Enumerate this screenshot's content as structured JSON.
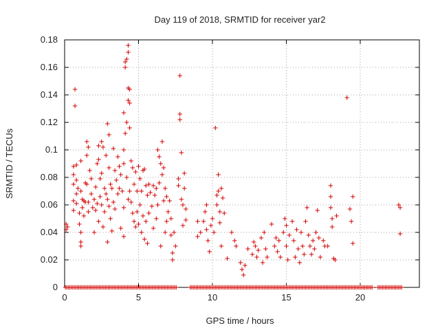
{
  "chart_data": {
    "type": "scatter",
    "title": "Day 119 of 2018, SRMTID for receiver yar2",
    "xlabel": "GPS time / hours",
    "ylabel": "SRMTID / TECUs",
    "xlim": [
      0,
      24
    ],
    "ylim": [
      0,
      0.18
    ],
    "grid": true,
    "marker": "+",
    "color": "#d40000",
    "x_ticks": [
      0,
      5,
      10,
      15,
      20
    ],
    "y_ticks": [
      0,
      0.02,
      0.04,
      0.06,
      0.08,
      0.1,
      0.12,
      0.14,
      0.16,
      0.18
    ],
    "x_tick_labels": [
      "0",
      "5",
      "10",
      "15",
      "20"
    ],
    "y_tick_labels": [
      "0",
      "0.02",
      "0.04",
      "0.06",
      "0.08",
      "0.1",
      "0.12",
      "0.14",
      "0.16",
      "0.18"
    ],
    "series": [
      {
        "name": "SRMTID",
        "points": [
          [
            0.1,
            0.046
          ],
          [
            0.1,
            0.042
          ],
          [
            0.2,
            0.044
          ],
          [
            0.6,
            0.088
          ],
          [
            0.6,
            0.082
          ],
          [
            0.6,
            0.075
          ],
          [
            0.6,
            0.063
          ],
          [
            0.6,
            0.056
          ],
          [
            0.7,
            0.144
          ],
          [
            0.7,
            0.132
          ],
          [
            0.8,
            0.089
          ],
          [
            0.8,
            0.078
          ],
          [
            0.8,
            0.068
          ],
          [
            0.8,
            0.061
          ],
          [
            0.9,
            0.072
          ],
          [
            1.0,
            0.054
          ],
          [
            1.0,
            0.046
          ],
          [
            1.1,
            0.092
          ],
          [
            1.1,
            0.07
          ],
          [
            1.1,
            0.04
          ],
          [
            1.1,
            0.033
          ],
          [
            1.1,
            0.03
          ],
          [
            1.2,
            0.064
          ],
          [
            1.2,
            0.058
          ],
          [
            1.3,
            0.063
          ],
          [
            1.3,
            0.052
          ],
          [
            1.4,
            0.076
          ],
          [
            1.4,
            0.062
          ],
          [
            1.5,
            0.106
          ],
          [
            1.5,
            0.096
          ],
          [
            1.5,
            0.075
          ],
          [
            1.6,
            0.102
          ],
          [
            1.6,
            0.062
          ],
          [
            1.6,
            0.055
          ],
          [
            1.7,
            0.085
          ],
          [
            1.8,
            0.079
          ],
          [
            1.8,
            0.068
          ],
          [
            1.9,
            0.058
          ],
          [
            2.0,
            0.064
          ],
          [
            2.0,
            0.04
          ],
          [
            2.1,
            0.073
          ],
          [
            2.1,
            0.056
          ],
          [
            2.2,
            0.09
          ],
          [
            2.2,
            0.061
          ],
          [
            2.3,
            0.103
          ],
          [
            2.3,
            0.093
          ],
          [
            2.3,
            0.048
          ],
          [
            2.4,
            0.079
          ],
          [
            2.4,
            0.066
          ],
          [
            2.5,
            0.106
          ],
          [
            2.5,
            0.083
          ],
          [
            2.5,
            0.06
          ],
          [
            2.6,
            0.102
          ],
          [
            2.6,
            0.044
          ],
          [
            2.7,
            0.072
          ],
          [
            2.7,
            0.055
          ],
          [
            2.8,
            0.096
          ],
          [
            2.8,
            0.068
          ],
          [
            2.9,
            0.119
          ],
          [
            2.9,
            0.064
          ],
          [
            2.9,
            0.033
          ],
          [
            3.0,
            0.111
          ],
          [
            3.0,
            0.087
          ],
          [
            3.0,
            0.059
          ],
          [
            3.1,
            0.075
          ],
          [
            3.1,
            0.05
          ],
          [
            3.2,
            0.072
          ],
          [
            3.2,
            0.041
          ],
          [
            3.3,
            0.101
          ],
          [
            3.3,
            0.062
          ],
          [
            3.4,
            0.085
          ],
          [
            3.4,
            0.057
          ],
          [
            3.5,
            0.078
          ],
          [
            3.6,
            0.095
          ],
          [
            3.6,
            0.068
          ],
          [
            3.7,
            0.088
          ],
          [
            3.7,
            0.072
          ],
          [
            3.8,
            0.082
          ],
          [
            3.8,
            0.043
          ],
          [
            3.9,
            0.07
          ],
          [
            4.0,
            0.1
          ],
          [
            4.0,
            0.127
          ],
          [
            4.0,
            0.09
          ],
          [
            4.0,
            0.058
          ],
          [
            4.0,
            0.037
          ],
          [
            4.1,
            0.16
          ],
          [
            4.1,
            0.164
          ],
          [
            4.1,
            0.112
          ],
          [
            4.2,
            0.166
          ],
          [
            4.2,
            0.12
          ],
          [
            4.2,
            0.08
          ],
          [
            4.3,
            0.176
          ],
          [
            4.3,
            0.171
          ],
          [
            4.3,
            0.145
          ],
          [
            4.3,
            0.136
          ],
          [
            4.3,
            0.064
          ],
          [
            4.4,
            0.144
          ],
          [
            4.4,
            0.134
          ],
          [
            4.4,
            0.116
          ],
          [
            4.4,
            0.07
          ],
          [
            4.5,
            0.092
          ],
          [
            4.5,
            0.062
          ],
          [
            4.6,
            0.087
          ],
          [
            4.6,
            0.054
          ],
          [
            4.7,
            0.075
          ],
          [
            4.7,
            0.048
          ],
          [
            4.8,
            0.084
          ],
          [
            4.8,
            0.044
          ],
          [
            4.9,
            0.07
          ],
          [
            4.9,
            0.055
          ],
          [
            5.0,
            0.088
          ],
          [
            5.0,
            0.046
          ],
          [
            5.1,
            0.079
          ],
          [
            5.1,
            0.06
          ],
          [
            5.2,
            0.07
          ],
          [
            5.2,
            0.04
          ],
          [
            5.3,
            0.085
          ],
          [
            5.3,
            0.052
          ],
          [
            5.4,
            0.086
          ],
          [
            5.4,
            0.035
          ],
          [
            5.5,
            0.074
          ],
          [
            5.5,
            0.048
          ],
          [
            5.6,
            0.067
          ],
          [
            5.6,
            0.032
          ],
          [
            5.7,
            0.075
          ],
          [
            5.7,
            0.054
          ],
          [
            5.8,
            0.069
          ],
          [
            5.9,
            0.059
          ],
          [
            6.0,
            0.074
          ],
          [
            6.0,
            0.043
          ],
          [
            6.1,
            0.067
          ],
          [
            6.2,
            0.072
          ],
          [
            6.2,
            0.05
          ],
          [
            6.3,
            0.1
          ],
          [
            6.3,
            0.06
          ],
          [
            6.4,
            0.095
          ],
          [
            6.4,
            0.076
          ],
          [
            6.5,
            0.09
          ],
          [
            6.5,
            0.03
          ],
          [
            6.6,
            0.106
          ],
          [
            6.6,
            0.082
          ],
          [
            6.7,
            0.087
          ],
          [
            6.7,
            0.063
          ],
          [
            6.8,
            0.072
          ],
          [
            6.8,
            0.04
          ],
          [
            6.9,
            0.066
          ],
          [
            6.9,
            0.048
          ],
          [
            7.0,
            0.055
          ],
          [
            7.1,
            0.063
          ],
          [
            7.2,
            0.05
          ],
          [
            7.2,
            0.038
          ],
          [
            7.3,
            0.025
          ],
          [
            7.3,
            0.02
          ],
          [
            7.4,
            0.04
          ],
          [
            7.5,
            0.03
          ],
          [
            7.7,
            0.079
          ],
          [
            7.7,
            0.074
          ],
          [
            7.8,
            0.154
          ],
          [
            7.8,
            0.126
          ],
          [
            7.8,
            0.122
          ],
          [
            7.9,
            0.098
          ],
          [
            7.9,
            0.064
          ],
          [
            8.0,
            0.06
          ],
          [
            8.0,
            0.045
          ],
          [
            8.1,
            0.083
          ],
          [
            8.1,
            0.072
          ],
          [
            8.2,
            0.057
          ],
          [
            8.2,
            0.049
          ],
          [
            9.0,
            0.048
          ],
          [
            9.0,
            0.037
          ],
          [
            9.2,
            0.04
          ],
          [
            9.4,
            0.048
          ],
          [
            9.5,
            0.055
          ],
          [
            9.6,
            0.06
          ],
          [
            9.6,
            0.042
          ],
          [
            9.7,
            0.034
          ],
          [
            9.8,
            0.026
          ],
          [
            9.9,
            0.045
          ],
          [
            10.0,
            0.05
          ],
          [
            10.1,
            0.04
          ],
          [
            10.2,
            0.116
          ],
          [
            10.3,
            0.067
          ],
          [
            10.3,
            0.06
          ],
          [
            10.4,
            0.082
          ],
          [
            10.4,
            0.07
          ],
          [
            10.5,
            0.055
          ],
          [
            10.5,
            0.047
          ],
          [
            10.6,
            0.072
          ],
          [
            10.6,
            0.03
          ],
          [
            10.7,
            0.065
          ],
          [
            10.8,
            0.054
          ],
          [
            11.0,
            0.021
          ],
          [
            11.3,
            0.04
          ],
          [
            11.5,
            0.034
          ],
          [
            11.6,
            0.03
          ],
          [
            11.9,
            0.018
          ],
          [
            12.0,
            0.013
          ],
          [
            12.1,
            0.009
          ],
          [
            12.2,
            0.016
          ],
          [
            12.4,
            0.028
          ],
          [
            12.7,
            0.024
          ],
          [
            12.8,
            0.033
          ],
          [
            12.9,
            0.03
          ],
          [
            13.0,
            0.022
          ],
          [
            13.1,
            0.027
          ],
          [
            13.3,
            0.036
          ],
          [
            13.4,
            0.018
          ],
          [
            13.5,
            0.04
          ],
          [
            13.6,
            0.028
          ],
          [
            13.7,
            0.022
          ],
          [
            14.0,
            0.046
          ],
          [
            14.2,
            0.03
          ],
          [
            14.3,
            0.036
          ],
          [
            14.4,
            0.026
          ],
          [
            14.5,
            0.034
          ],
          [
            14.6,
            0.022
          ],
          [
            14.8,
            0.04
          ],
          [
            14.9,
            0.05
          ],
          [
            15.0,
            0.045
          ],
          [
            15.0,
            0.03
          ],
          [
            15.1,
            0.02
          ],
          [
            15.2,
            0.038
          ],
          [
            15.4,
            0.048
          ],
          [
            15.5,
            0.034
          ],
          [
            15.6,
            0.022
          ],
          [
            15.7,
            0.042
          ],
          [
            15.8,
            0.028
          ],
          [
            15.9,
            0.018
          ],
          [
            16.0,
            0.04
          ],
          [
            16.1,
            0.03
          ],
          [
            16.2,
            0.024
          ],
          [
            16.3,
            0.048
          ],
          [
            16.4,
            0.058
          ],
          [
            16.5,
            0.038
          ],
          [
            16.6,
            0.03
          ],
          [
            16.7,
            0.024
          ],
          [
            16.8,
            0.034
          ],
          [
            16.9,
            0.028
          ],
          [
            17.0,
            0.04
          ],
          [
            17.1,
            0.056
          ],
          [
            17.2,
            0.036
          ],
          [
            17.3,
            0.022
          ],
          [
            17.5,
            0.034
          ],
          [
            17.6,
            0.03
          ],
          [
            17.8,
            0.03
          ],
          [
            18.0,
            0.074
          ],
          [
            18.0,
            0.066
          ],
          [
            18.0,
            0.058
          ],
          [
            18.1,
            0.05
          ],
          [
            18.1,
            0.044
          ],
          [
            18.2,
            0.021
          ],
          [
            18.3,
            0.02
          ],
          [
            18.4,
            0.052
          ],
          [
            19.1,
            0.138
          ],
          [
            19.3,
            0.057
          ],
          [
            19.4,
            0.048
          ],
          [
            19.5,
            0.066
          ],
          [
            19.5,
            0.032
          ],
          [
            22.6,
            0.06
          ],
          [
            22.7,
            0.058
          ],
          [
            22.7,
            0.039
          ]
        ]
      }
    ],
    "zero_band": {
      "y": 0,
      "x_ranges": [
        [
          0.05,
          7.6
        ],
        [
          8.5,
          20.8
        ],
        [
          21.2,
          22.8
        ]
      ],
      "step": 0.1
    }
  }
}
